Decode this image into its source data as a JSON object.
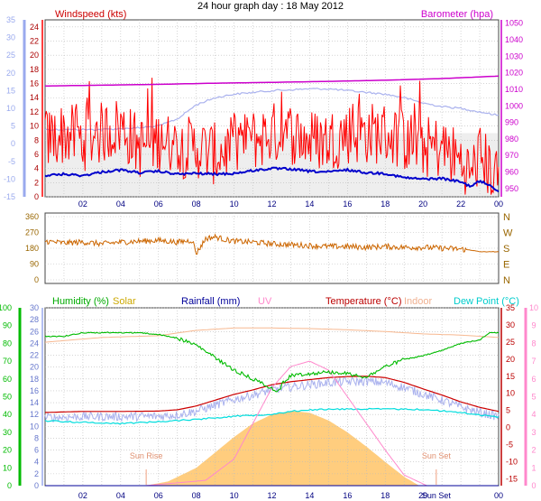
{
  "title": "24 hour graph day : 18 May 2012",
  "colors": {
    "windspeed": "#ff0000",
    "windspeed_avg": "#0000cc",
    "barometer": "#cc00cc",
    "temperature_axis": "#bb0000",
    "temp_line": "#cc0000",
    "dew_line": "#00dddd",
    "indoor_line": "#f7b890",
    "humidity": "#00bb00",
    "solar_fill": "#ffc870",
    "rain": "#000099",
    "uv": "#ff88cc",
    "wind_dir": "#cc6600",
    "apparent": "#aab2ee",
    "axis_blue": "#9aaaee",
    "grid": "#bbbbbb",
    "x_ticks": "#000080",
    "sun_label": "#e09070"
  },
  "legend_labels": {
    "windspeed": "Windspeed (kts)",
    "barometer": "Barometer (hpa)",
    "humidity": "Humidity (%)",
    "solar": "Solar",
    "rainfall": "Rainfall (mm)",
    "uv": "UV",
    "temperature": "Temperature (°C)",
    "indoor": "Indoor",
    "dewpoint": "Dew Point (°C)"
  },
  "annotations": {
    "sun_rise": "Sun Rise",
    "sun_set": "Sun Set",
    "sun_set_tick": "Sun Set"
  },
  "chart_data": [
    {
      "type": "line",
      "panel": "wind-barometer",
      "title": "24 hour graph day : 18 May 2012",
      "x_ticks": [
        "02",
        "04",
        "06",
        "08",
        "10",
        "12",
        "14",
        "16",
        "18",
        "20",
        "22",
        "00"
      ],
      "xlim_hours": [
        0,
        24
      ],
      "grid": true,
      "axes": {
        "left_outer": {
          "ticks": [
            "35",
            "30",
            "25",
            "20",
            "15",
            "10",
            "5",
            "0",
            "-5",
            "-10",
            "-15"
          ],
          "ylim": [
            -15,
            35
          ]
        },
        "left_inner_windspeed_kts": {
          "ticks": [
            "24",
            "22",
            "20",
            "18",
            "16",
            "14",
            "12",
            "10",
            "8",
            "6",
            "4",
            "2",
            "0"
          ],
          "ylim": [
            0,
            25
          ]
        },
        "right_barometer_hpa": {
          "ticks": [
            "1050",
            "1040",
            "1030",
            "1020",
            "1010",
            "1000",
            "990",
            "980",
            "970",
            "960",
            "950"
          ],
          "ylim": [
            945,
            1052
          ]
        }
      },
      "series": [
        {
          "name": "Windspeed (kts)",
          "key": "gust",
          "hours": [
            0,
            1,
            2,
            3,
            4,
            5,
            6,
            7,
            8,
            9,
            10,
            11,
            12,
            13,
            14,
            15,
            16,
            17,
            18,
            19,
            20,
            21,
            22,
            22.5,
            23,
            23.5,
            24
          ],
          "values": [
            8,
            9,
            8,
            9,
            10,
            7,
            8,
            7,
            7,
            6,
            7,
            8,
            9,
            9,
            8,
            8,
            9,
            9,
            9,
            8,
            7,
            7,
            5,
            3,
            6,
            4,
            2
          ]
        },
        {
          "name": "Windspeed (kts)",
          "key": "avg",
          "hours": [
            0,
            1,
            2,
            3,
            4,
            5,
            6,
            7,
            8,
            9,
            10,
            11,
            12,
            13,
            14,
            15,
            16,
            17,
            18,
            19,
            20,
            21,
            22,
            22.5,
            23,
            23.5,
            24
          ],
          "values": [
            3,
            3.2,
            3,
            3.5,
            3.8,
            3.4,
            3.6,
            3.2,
            3.3,
            3.2,
            3.3,
            3.7,
            4,
            3.9,
            3.6,
            3.5,
            3.8,
            3.4,
            3.3,
            2.7,
            2.5,
            2.6,
            2.1,
            1.5,
            2.2,
            1.7,
            0.8
          ]
        },
        {
          "name": "Barometer (hpa)",
          "hours": [
            0,
            3,
            6,
            9,
            12,
            15,
            18,
            21,
            24
          ],
          "values": [
            1012,
            1012.5,
            1013,
            1013.7,
            1014.2,
            1014.8,
            1015.5,
            1016.5,
            1018
          ]
        },
        {
          "name": "",
          "key": "apparent",
          "hours": [
            0,
            3,
            5,
            6,
            7,
            8,
            9,
            10,
            11,
            12,
            14,
            15,
            16,
            17,
            18,
            19,
            20,
            21,
            22,
            23,
            24
          ],
          "values": [
            4,
            4,
            4.5,
            5,
            7,
            11,
            13,
            14,
            14.5,
            15,
            15.5,
            15.5,
            15,
            14.5,
            14,
            13,
            11.5,
            10.5,
            10,
            9,
            8
          ]
        }
      ]
    },
    {
      "type": "line",
      "panel": "wind-direction",
      "x_ticks": [],
      "y_ticks_left": [
        "360",
        "270",
        "180",
        "90",
        "0"
      ],
      "y_labels_right": [
        "N",
        "W",
        "S",
        "E",
        "N"
      ],
      "ylim": [
        0,
        360
      ],
      "series": [
        {
          "name": "",
          "key": "direction",
          "hours": [
            0,
            1,
            2,
            3,
            4,
            5,
            6,
            7,
            7.8,
            8,
            8.5,
            9,
            9.5,
            10,
            11,
            12,
            13,
            14,
            15,
            16,
            17,
            18,
            19,
            20,
            21,
            22,
            22.5,
            23,
            24
          ],
          "values": [
            220,
            210,
            215,
            205,
            215,
            220,
            225,
            215,
            225,
            150,
            235,
            245,
            230,
            220,
            215,
            205,
            200,
            195,
            190,
            190,
            185,
            190,
            185,
            185,
            180,
            175,
            170,
            160,
            160
          ]
        }
      ]
    },
    {
      "type": "line",
      "panel": "temperature-humidity",
      "x_ticks": [
        "02",
        "04",
        "06",
        "08",
        "10",
        "12",
        "14",
        "16",
        "18",
        "20",
        "Sun Set",
        "00"
      ],
      "grid": true,
      "axes": {
        "left_humidity_pct": {
          "ticks": [
            "100",
            "90",
            "80",
            "70",
            "60",
            "50",
            "40",
            "30",
            "20",
            "10",
            "0"
          ],
          "ylim": [
            0,
            100
          ]
        },
        "left_inner": {
          "ticks": [
            "30",
            "28",
            "26",
            "24",
            "22",
            "20",
            "18",
            "16",
            "14",
            "12",
            "10",
            "8",
            "6",
            "4",
            "2",
            "0"
          ],
          "ylim": [
            0,
            30
          ]
        },
        "right_temperature_c": {
          "ticks": [
            "35",
            "30",
            "25",
            "20",
            "15",
            "10",
            "5",
            "0",
            "-5",
            "-10",
            "-15"
          ],
          "ylim": [
            -17,
            35
          ]
        },
        "right_uv": {
          "ticks": [
            "10",
            "9",
            "8",
            "7",
            "6",
            "5",
            "4",
            "3",
            "2",
            "1",
            "0"
          ],
          "ylim": [
            0,
            10
          ]
        }
      },
      "series": [
        {
          "name": "Humidity (%)",
          "hours": [
            0,
            1,
            2,
            3,
            4,
            5,
            6,
            7,
            8,
            9,
            10,
            11,
            12,
            12.3,
            12.6,
            13,
            14,
            15,
            16,
            17,
            18,
            19,
            20,
            21,
            22,
            23,
            23.5,
            24
          ],
          "values": [
            84,
            84,
            86,
            86,
            86,
            86,
            85,
            83,
            79,
            72,
            65,
            60,
            55,
            52,
            58,
            62,
            63,
            64,
            63,
            61,
            67,
            71,
            73,
            76,
            80,
            82,
            86,
            86
          ]
        },
        {
          "name": "Temperature (°C)",
          "hours": [
            0,
            2,
            4,
            6,
            7,
            8,
            9,
            10,
            11,
            12,
            13,
            14,
            15,
            16,
            17,
            18,
            19,
            20,
            21,
            22,
            23,
            24
          ],
          "values": [
            4.4,
            4.7,
            4.7,
            4.8,
            5.2,
            6.3,
            8,
            9.7,
            11,
            12.5,
            13.4,
            14,
            14.6,
            14.9,
            15,
            14.6,
            13.2,
            11.3,
            9.5,
            7.5,
            5.9,
            4.7
          ]
        },
        {
          "name": "Dew Point (°C)",
          "hours": [
            0,
            2,
            4,
            6,
            8,
            10,
            12,
            13,
            14,
            16,
            18,
            20,
            22,
            24
          ],
          "values": [
            2,
            1.5,
            1.2,
            1.7,
            2.4,
            3.3,
            3.9,
            4.7,
            5.2,
            5.4,
            5.4,
            5.3,
            4.4,
            3
          ]
        },
        {
          "name": "Indoor",
          "hours": [
            0,
            3,
            6,
            8,
            10,
            12,
            14,
            16,
            18,
            20,
            22,
            24
          ],
          "values": [
            24.2,
            25,
            25.3,
            26.2,
            26.6,
            26.6,
            26.5,
            26.3,
            26,
            25.6,
            25.4,
            25
          ]
        },
        {
          "name": "Solar",
          "hours": [
            5.3,
            6.5,
            8,
            9,
            10,
            11,
            12,
            13,
            14,
            15,
            16,
            17,
            18,
            19,
            19.8
          ],
          "values": [
            0,
            0.7,
            3,
            5.6,
            8.2,
            10.5,
            12,
            12.6,
            12.3,
            11,
            9,
            6.6,
            4,
            1.5,
            0
          ]
        },
        {
          "name": "UV",
          "hours": [
            5.3,
            8.5,
            10,
            11,
            12,
            13,
            14,
            15,
            16,
            17,
            18,
            18.5,
            19,
            20.2
          ],
          "values": [
            0,
            0.3,
            1.5,
            3.5,
            5.5,
            6.7,
            7,
            6.5,
            5,
            3.5,
            2,
            1.3,
            0.6,
            0
          ]
        },
        {
          "name": "Rainfall (mm)",
          "hours": [
            0,
            24
          ],
          "values": [
            0,
            0
          ]
        }
      ],
      "sun_rise_hour": 5.35,
      "sun_set_hour": 20.7
    }
  ]
}
